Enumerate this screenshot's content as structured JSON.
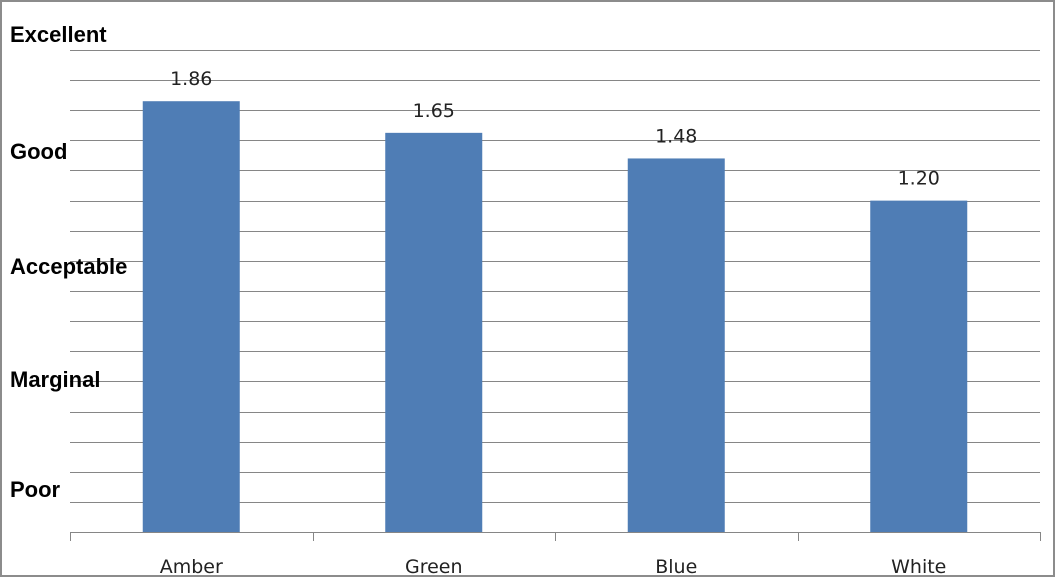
{
  "chart_data": {
    "type": "bar",
    "categories": [
      "Amber",
      "Green",
      "Blue",
      "White"
    ],
    "values": [
      1.86,
      1.65,
      1.48,
      1.2
    ],
    "data_labels": [
      "1.86",
      "1.65",
      "1.48",
      "1.20"
    ],
    "rating_labels": [
      "Excellent",
      "Good",
      "Acceptable",
      "Marginal",
      "Poor"
    ],
    "title": "",
    "xlabel": "",
    "ylabel": "",
    "ylim": [
      -1,
      2.2
    ],
    "ytick_step": 0.2,
    "grid": true,
    "legend": "none",
    "bar_color": "#4f7db5"
  }
}
